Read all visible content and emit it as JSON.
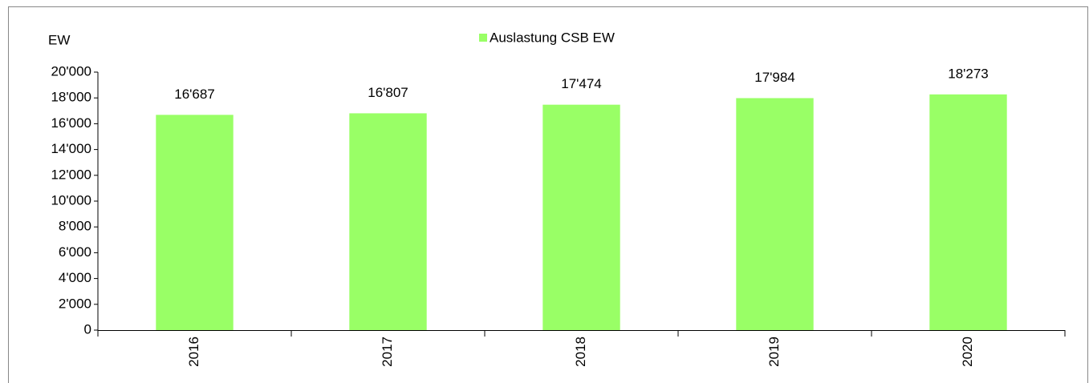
{
  "chart_data": {
    "type": "bar",
    "y_axis_label": "EW",
    "categories": [
      "2016",
      "2017",
      "2018",
      "2019",
      "2020"
    ],
    "series": [
      {
        "name": "Auslastung CSB EW",
        "color": "#99ff66",
        "values": [
          16687,
          16807,
          17474,
          17984,
          18273
        ],
        "value_labels": [
          "16'687",
          "16'807",
          "17'474",
          "17'984",
          "18'273"
        ]
      }
    ],
    "ylim": [
      0,
      20000
    ],
    "yticks": [
      0,
      {
        "value": 2000,
        "label": "2'000"
      },
      {
        "value": 4000,
        "label": "4'000"
      },
      {
        "value": 6000,
        "label": "6'000"
      },
      {
        "value": 8000,
        "label": "8'000"
      },
      {
        "value": 10000,
        "label": "10'000"
      },
      {
        "value": 12000,
        "label": "12'000"
      },
      {
        "value": 14000,
        "label": "14'000"
      },
      {
        "value": 16000,
        "label": "16'000"
      },
      {
        "value": 18000,
        "label": "18'000"
      },
      {
        "value": 20000,
        "label": "20'000"
      }
    ],
    "legend": "top",
    "grid": false
  }
}
